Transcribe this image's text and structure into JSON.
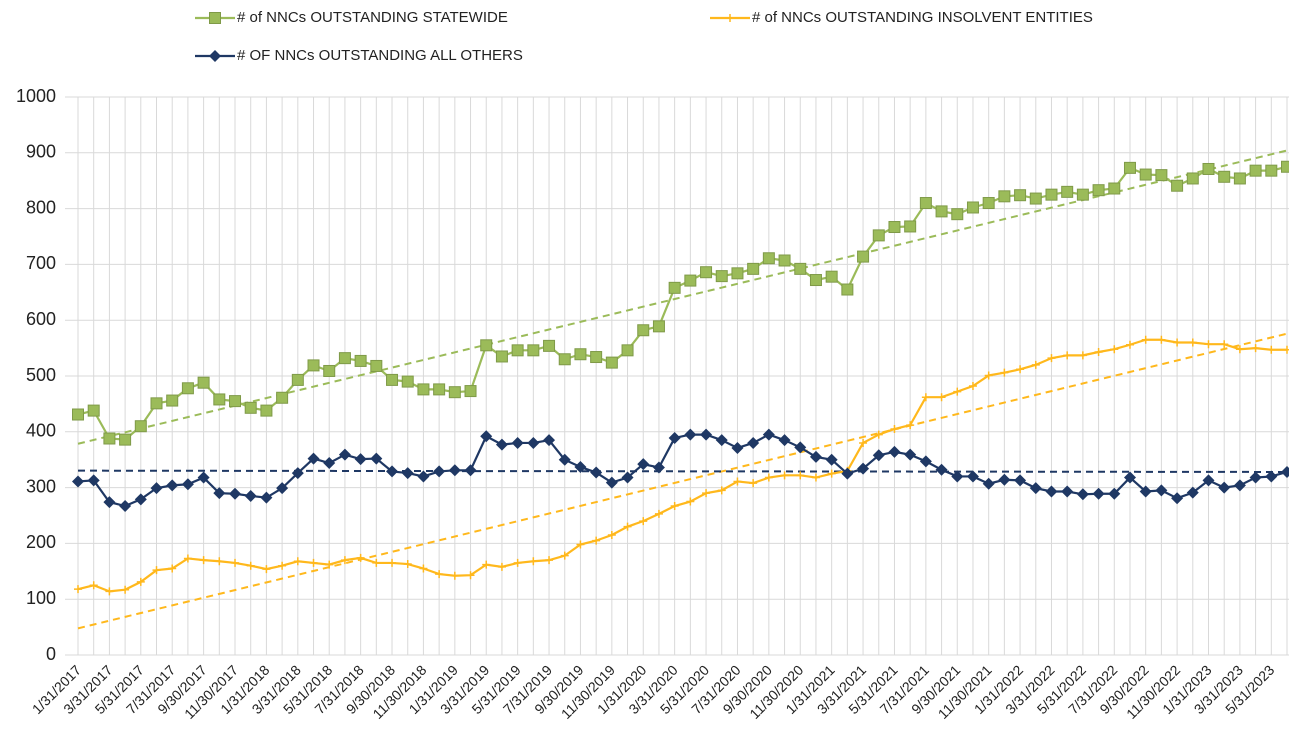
{
  "chart_data": {
    "type": "line",
    "categories": [
      "1/31/2017",
      null,
      "3/31/2017",
      null,
      "5/31/2017",
      null,
      "7/31/2017",
      null,
      "9/30/2017",
      null,
      "11/30/2017",
      null,
      "1/31/2018",
      null,
      "3/31/2018",
      null,
      "5/31/2018",
      null,
      "7/31/2018",
      null,
      "9/30/2018",
      null,
      "11/30/2018",
      null,
      "1/31/2019",
      null,
      "3/31/2019",
      null,
      "5/31/2019",
      null,
      "7/31/2019",
      null,
      "9/30/2019",
      null,
      "11/30/2019",
      null,
      "1/31/2020",
      null,
      "3/31/2020",
      null,
      "5/31/2020",
      null,
      "7/31/2020",
      null,
      "9/30/2020",
      null,
      "11/30/2020",
      null,
      "1/31/2021",
      null,
      "3/31/2021",
      null,
      "5/31/2021",
      null,
      "7/31/2021",
      null,
      "9/30/2021",
      null,
      "11/30/2021",
      null,
      "1/31/2022",
      null,
      "3/31/2022",
      null,
      "5/31/2022",
      null,
      "7/31/2022",
      null,
      "9/30/2022",
      null,
      "11/30/2022",
      null,
      "1/31/2023",
      null,
      "3/31/2023",
      null,
      "5/31/2023",
      null
    ],
    "series": [
      {
        "name": "# of NNCs OUTSTANDING STATEWIDE",
        "color": "#9bbb59",
        "marker": "square",
        "values": [
          431,
          438,
          388,
          386,
          410,
          451,
          456,
          478,
          488,
          458,
          455,
          443,
          438,
          461,
          493,
          519,
          509,
          532,
          527,
          518,
          493,
          490,
          476,
          476,
          471,
          473,
          555,
          535,
          546,
          546,
          554,
          530,
          539,
          534,
          524,
          546,
          582,
          589,
          658,
          671,
          686,
          679,
          684,
          692,
          711,
          707,
          692,
          672,
          678,
          655,
          714,
          752,
          767,
          768,
          810,
          795,
          790,
          802,
          810,
          822,
          824,
          818,
          825,
          830,
          825,
          833,
          836,
          873,
          861,
          860,
          841,
          854,
          871,
          857,
          854,
          868,
          868,
          875
        ]
      },
      {
        "name": "# of NNCs OUTSTANDING INSOLVENT ENTITIES",
        "color": "#ffb81c",
        "marker": "plus",
        "values": [
          118,
          125,
          114,
          117,
          131,
          152,
          155,
          173,
          170,
          168,
          165,
          160,
          154,
          160,
          168,
          165,
          162,
          170,
          174,
          165,
          165,
          163,
          155,
          145,
          142,
          143,
          162,
          158,
          165,
          168,
          170,
          178,
          198,
          205,
          215,
          230,
          240,
          253,
          267,
          275,
          290,
          295,
          311,
          308,
          318,
          322,
          322,
          318,
          325,
          330,
          380,
          395,
          405,
          412,
          462,
          462,
          472,
          482,
          501,
          506,
          512,
          520,
          532,
          537,
          537,
          543,
          548,
          556,
          565,
          565,
          560,
          560,
          557,
          557,
          548,
          550,
          547,
          547
        ]
      },
      {
        "name": "# OF NNCs OUTSTANDING ALL OTHERS",
        "color": "#1f3864",
        "marker": "diamond",
        "values": [
          311,
          313,
          274,
          267,
          279,
          299,
          304,
          306,
          318,
          290,
          289,
          285,
          282,
          299,
          326,
          352,
          344,
          359,
          351,
          352,
          329,
          326,
          320,
          329,
          331,
          331,
          392,
          377,
          380,
          380,
          385,
          350,
          337,
          327,
          309,
          318,
          342,
          336,
          389,
          395,
          395,
          385,
          371,
          380,
          395,
          385,
          372,
          355,
          350,
          325,
          334,
          358,
          364,
          359,
          347,
          332,
          320,
          320,
          307,
          314,
          313,
          299,
          293,
          293,
          288,
          289,
          289,
          318,
          293,
          295,
          281,
          291,
          313,
          300,
          304,
          318,
          320,
          328
        ]
      }
    ],
    "ylim": [
      0,
      1000
    ],
    "yticks": [
      0,
      100,
      200,
      300,
      400,
      500,
      600,
      700,
      800,
      900,
      1000
    ],
    "grid": true,
    "trendline": true,
    "legend": "top"
  }
}
